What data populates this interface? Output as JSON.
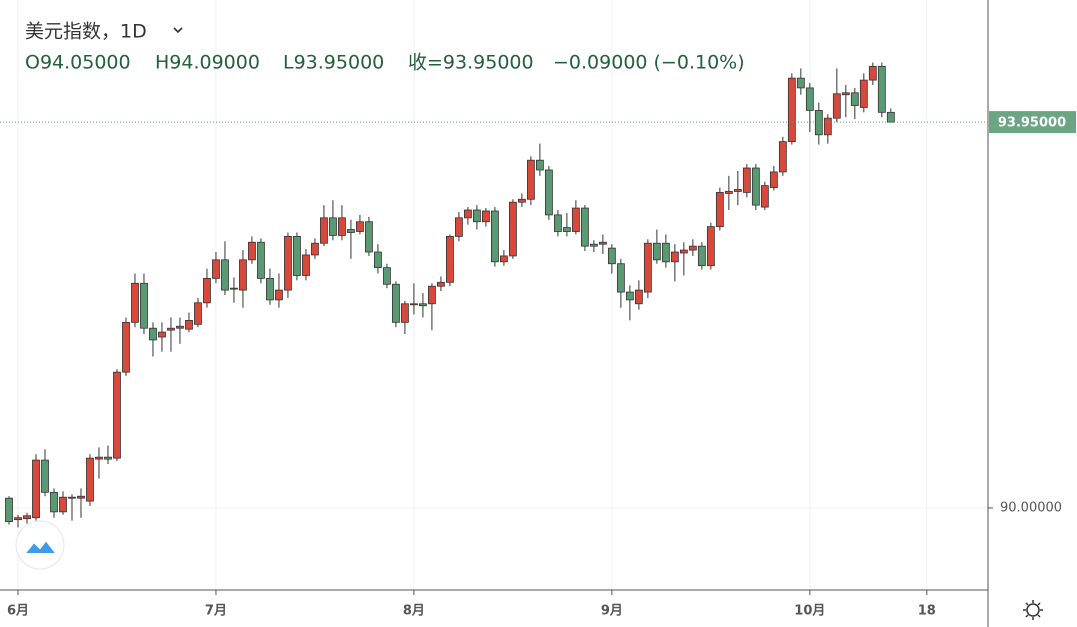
{
  "chart_data": {
    "type": "candlestick",
    "title": "美元指数，1D",
    "ohlc_labels": [
      "O94.05000",
      "H94.09000",
      "L93.95000",
      "收=93.95000",
      "−0.09000 (−0.10%)"
    ],
    "up_color": "#d9493b",
    "down_color": "#5a9a72",
    "grid": true,
    "last_price": {
      "value": 93.95,
      "label": "93.95000"
    },
    "x": [
      0,
      1,
      2,
      3,
      4,
      5,
      6,
      7,
      8,
      9,
      10,
      11,
      12,
      13,
      14,
      15,
      16,
      17,
      18,
      19,
      20,
      21,
      22,
      23,
      24,
      25,
      26,
      27,
      28,
      29,
      30,
      31,
      32,
      33,
      34,
      35,
      36,
      37,
      38,
      39,
      40,
      41,
      42,
      43,
      44,
      45,
      46,
      47,
      48,
      49,
      50,
      51,
      52,
      53,
      54,
      55,
      56,
      57,
      58,
      59,
      60,
      61,
      62,
      63,
      64,
      65,
      66,
      67,
      68,
      69,
      70,
      71,
      72,
      73,
      74,
      75,
      76,
      77,
      78,
      79,
      80,
      81,
      82,
      83,
      84,
      85,
      86,
      87,
      88,
      89,
      90,
      91,
      92,
      93,
      94,
      95,
      96,
      97,
      98
    ],
    "open": [
      90.1,
      89.88,
      89.89,
      89.9,
      90.49,
      90.16,
      89.96,
      90.11,
      90.1,
      90.07,
      90.5,
      90.52,
      90.51,
      91.39,
      91.9,
      92.3,
      91.84,
      91.75,
      91.82,
      91.84,
      91.83,
      91.88,
      92.1,
      92.35,
      92.54,
      92.25,
      92.23,
      92.54,
      92.72,
      92.35,
      92.13,
      92.23,
      92.78,
      92.38,
      92.59,
      92.71,
      92.97,
      92.79,
      92.85,
      92.83,
      92.93,
      92.62,
      92.46,
      92.29,
      91.9,
      92.08,
      92.09,
      92.09,
      92.27,
      92.31,
      92.78,
      92.97,
      93.05,
      92.93,
      93.04,
      92.52,
      92.58,
      93.13,
      93.16,
      93.56,
      93.46,
      93.0,
      92.87,
      92.83,
      93.07,
      92.7,
      92.7,
      92.66,
      92.5,
      92.21,
      92.09,
      92.21,
      92.71,
      92.71,
      92.52,
      92.61,
      92.64,
      92.68,
      92.48,
      92.88,
      93.22,
      93.24,
      93.23,
      93.48,
      93.08,
      93.28,
      93.44,
      93.75,
      94.4,
      94.3,
      94.07,
      93.82,
      93.99,
      94.23,
      94.25,
      94.1,
      94.38,
      94.52,
      94.05
    ],
    "high": [
      90.12,
      89.93,
      89.95,
      90.55,
      90.6,
      90.2,
      90.17,
      90.14,
      90.2,
      90.55,
      90.62,
      90.64,
      91.42,
      91.95,
      92.4,
      92.4,
      91.9,
      91.9,
      91.95,
      91.95,
      92.0,
      92.15,
      92.45,
      92.62,
      92.73,
      92.36,
      92.64,
      92.78,
      92.76,
      92.45,
      92.4,
      92.82,
      92.82,
      92.65,
      92.76,
      93.1,
      93.15,
      93.1,
      92.95,
      93.0,
      92.98,
      92.7,
      92.5,
      92.32,
      92.12,
      92.3,
      92.2,
      92.3,
      92.37,
      92.8,
      93.03,
      93.08,
      93.1,
      93.07,
      93.08,
      92.64,
      93.16,
      93.22,
      93.6,
      93.73,
      93.5,
      93.05,
      93.02,
      93.15,
      93.1,
      92.74,
      92.8,
      92.7,
      92.55,
      92.28,
      92.33,
      92.75,
      92.85,
      92.8,
      92.7,
      92.72,
      92.75,
      92.72,
      92.92,
      93.28,
      93.4,
      93.45,
      93.52,
      93.52,
      93.34,
      93.5,
      93.8,
      94.45,
      94.5,
      94.35,
      94.15,
      94.03,
      94.5,
      94.33,
      94.3,
      94.45,
      94.56,
      94.56,
      94.09
    ],
    "low": [
      89.83,
      89.8,
      89.84,
      89.87,
      90.12,
      89.9,
      89.93,
      89.87,
      89.9,
      90.02,
      90.3,
      90.45,
      90.48,
      91.35,
      91.85,
      91.78,
      91.55,
      91.6,
      91.6,
      91.68,
      91.8,
      91.85,
      92.05,
      92.3,
      92.18,
      92.1,
      92.05,
      92.5,
      92.3,
      92.08,
      92.05,
      92.15,
      92.33,
      92.33,
      92.55,
      92.68,
      92.74,
      92.74,
      92.55,
      92.8,
      92.58,
      92.4,
      92.25,
      91.85,
      91.78,
      91.98,
      91.95,
      91.82,
      92.22,
      92.27,
      92.73,
      92.9,
      92.85,
      92.88,
      92.47,
      92.48,
      92.55,
      93.08,
      93.1,
      93.4,
      92.95,
      92.78,
      92.78,
      92.8,
      92.63,
      92.62,
      92.6,
      92.4,
      92.05,
      91.92,
      92.03,
      92.15,
      92.5,
      92.46,
      92.32,
      92.38,
      92.58,
      92.44,
      92.44,
      92.84,
      93.05,
      93.1,
      93.18,
      93.05,
      93.05,
      93.25,
      93.4,
      93.72,
      94.23,
      93.85,
      93.72,
      93.73,
      93.95,
      94.0,
      93.98,
      94.05,
      94.33,
      94.0,
      93.95
    ],
    "close": [
      89.86,
      89.9,
      89.92,
      90.49,
      90.16,
      89.96,
      90.11,
      90.1,
      90.12,
      90.51,
      90.52,
      90.5,
      91.39,
      91.9,
      92.3,
      91.84,
      91.72,
      91.8,
      91.84,
      91.86,
      91.92,
      92.1,
      92.35,
      92.54,
      92.23,
      92.24,
      92.54,
      92.72,
      92.35,
      92.13,
      92.23,
      92.78,
      92.38,
      92.59,
      92.71,
      92.97,
      92.79,
      92.97,
      92.82,
      92.93,
      92.62,
      92.46,
      92.29,
      91.9,
      92.09,
      92.09,
      92.07,
      92.27,
      92.31,
      92.78,
      92.97,
      93.05,
      92.93,
      93.04,
      92.52,
      92.58,
      93.13,
      93.16,
      93.56,
      93.46,
      93.0,
      92.83,
      92.83,
      93.07,
      92.68,
      92.68,
      92.72,
      92.5,
      92.21,
      92.13,
      92.23,
      92.71,
      92.54,
      92.52,
      92.62,
      92.64,
      92.68,
      92.48,
      92.88,
      93.23,
      93.24,
      93.26,
      93.48,
      93.1,
      93.3,
      93.44,
      93.75,
      94.4,
      94.3,
      94.07,
      93.82,
      93.99,
      94.24,
      94.25,
      94.12,
      94.38,
      94.52,
      94.05,
      93.95
    ],
    "xlim": [
      -1,
      108.8
    ],
    "xticks": [
      {
        "value": 1,
        "label": "6月"
      },
      {
        "value": 23,
        "label": "7月"
      },
      {
        "value": 45,
        "label": "8月"
      },
      {
        "value": 67,
        "label": "9月"
      },
      {
        "value": 89,
        "label": "10月"
      },
      {
        "value": 102,
        "label": "18"
      }
    ],
    "ylim": [
      89.16,
      95.2
    ],
    "yticks": [
      {
        "value": 90,
        "label": "90.00000"
      }
    ]
  }
}
